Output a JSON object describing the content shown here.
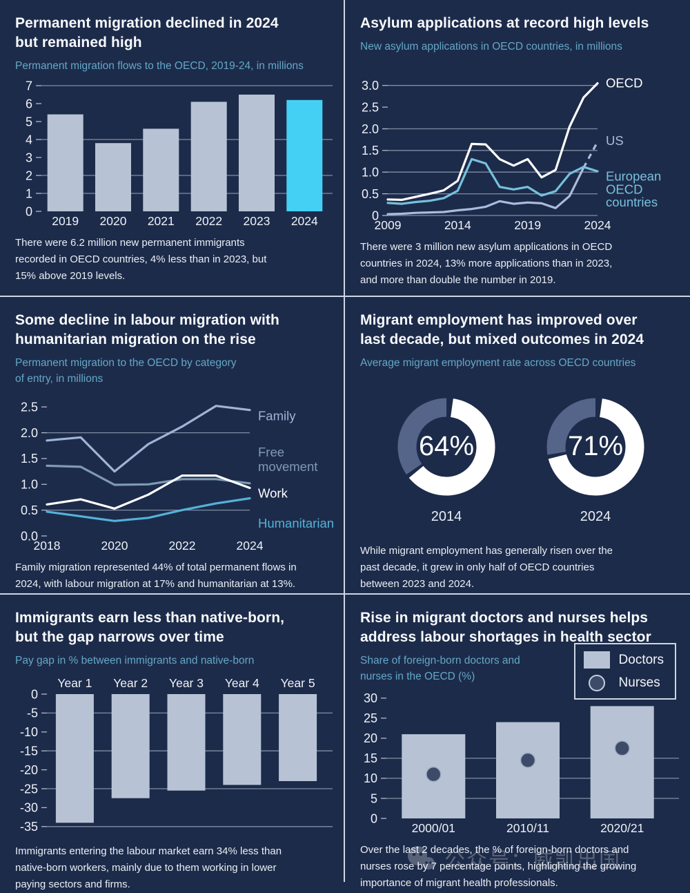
{
  "watermark": {
    "text": "公众号：威凯出国"
  },
  "colors": {
    "background": "#1d2b4a",
    "divider": "#cdd6e3",
    "title_text": "#f7f9fc",
    "subtitle_text": "#63a8c7",
    "caption_text": "#e9eef5",
    "bar_gray": "#b7c3d4",
    "highlight_cyan": "#44d0f4",
    "donut_ring_gray": "#55658a",
    "donut_fill_white": "#ffffff"
  },
  "panels": [
    {
      "id": "permanent-migration",
      "title": "Permanent migration declined in 2024\nbut remained high",
      "subtitle": "Permanent migration flows to the OECD, 2019-24, in millions",
      "caption": "There were 6.2 million new permanent immigrants\nrecorded in OECD countries, 4% less than in 2023, but\n15% above 2019 levels."
    },
    {
      "id": "asylum-applications",
      "title": "Asylum applications at record high levels",
      "subtitle": "New asylum applications in OECD countries, in millions",
      "caption": "There were 3 million new asylum applications in OECD\ncountries in 2024, 13% more applications than in 2023,\nand more than double the number in 2019."
    },
    {
      "id": "migration-by-category",
      "title": "Some decline in labour migration with\nhumanitarian migration on the rise",
      "subtitle": "Permanent migration to the OECD by category\nof entry, in millions",
      "caption": "Family migration represented 44% of total permanent flows in\n2024, with labour migration at 17% and humanitarian at 13%."
    },
    {
      "id": "migrant-employment",
      "title": "Migrant employment has improved over\nlast decade, but mixed outcomes in 2024",
      "subtitle": "Average migrant employment rate across OECD countries",
      "caption": "While migrant employment has generally risen over the\npast decade, it grew in only half of OECD countries\nbetween 2023 and 2024."
    },
    {
      "id": "pay-gap",
      "title": "Immigrants earn less than native-born,\nbut the gap narrows over time",
      "subtitle": "Pay gap in % between immigrants and native-born",
      "caption": "Immigrants entering the labour market earn 34% less than\nnative-born workers, mainly due to them working in lower\npaying sectors and firms."
    },
    {
      "id": "doctors-nurses",
      "title": "Rise in migrant doctors and nurses helps\naddress labour shortages in health sector",
      "subtitle": "Share of foreign-born doctors and\nnurses in the OECD (%)",
      "caption": "Over the last 2 decades, the % of foreign-born doctors and\nnurses rose by 7 percentage points, highlighting the growing\nimportance of migrant health professionals."
    }
  ],
  "chart_data": [
    {
      "panel": "permanent-migration",
      "type": "bar",
      "title": "Permanent migration flows to the OECD, 2019-24, in millions",
      "unit": "millions",
      "categories": [
        "2019",
        "2020",
        "2021",
        "2022",
        "2023",
        "2024"
      ],
      "values": [
        5.4,
        3.8,
        4.6,
        6.1,
        6.5,
        6.2
      ],
      "highlight_index": 5,
      "bar_color": "#b7c3d4",
      "highlight_color": "#44d0f4",
      "ylim": [
        0,
        7
      ],
      "yticks": [
        [
          0,
          "0"
        ],
        [
          1,
          "1"
        ],
        [
          2,
          "2"
        ],
        [
          3,
          "3"
        ],
        [
          4,
          "4"
        ],
        [
          5,
          "5"
        ],
        [
          6,
          "6"
        ],
        [
          7,
          "7"
        ]
      ],
      "gridlines": [
        1,
        2,
        4,
        7
      ],
      "labels_position": "bottom"
    },
    {
      "panel": "asylum-applications",
      "type": "line",
      "title": "New asylum applications in OECD countries, in millions",
      "unit": "millions",
      "x": [
        2009,
        2010,
        2011,
        2012,
        2013,
        2014,
        2015,
        2016,
        2017,
        2018,
        2019,
        2020,
        2021,
        2022,
        2023,
        2024
      ],
      "xticks": [
        [
          0,
          "2009"
        ],
        [
          5,
          "2014"
        ],
        [
          10,
          "2019"
        ],
        [
          15,
          "2024"
        ]
      ],
      "ylim": [
        0,
        3.25
      ],
      "yticks": [
        [
          0,
          "0"
        ],
        [
          0.5,
          "0.5"
        ],
        [
          1,
          "1.0"
        ],
        [
          1.5,
          "1.5"
        ],
        [
          2,
          "2.0"
        ],
        [
          2.5,
          "2.5"
        ],
        [
          3,
          "3.0"
        ]
      ],
      "gridlines": [
        0,
        0.5,
        1,
        1.5,
        2,
        3
      ],
      "series": [
        {
          "name": "US",
          "color": "#aabcdc",
          "dashed_final_segment": true,
          "values": [
            0.03,
            0.04,
            0.06,
            0.07,
            0.08,
            0.12,
            0.15,
            0.2,
            0.33,
            0.27,
            0.3,
            0.28,
            0.17,
            0.45,
            1.1,
            1.7
          ]
        },
        {
          "name": "European OECD countries",
          "color": "#77c1dd",
          "values": [
            0.29,
            0.27,
            0.31,
            0.34,
            0.4,
            0.57,
            1.3,
            1.2,
            0.66,
            0.6,
            0.66,
            0.46,
            0.56,
            0.96,
            1.12,
            1.02
          ]
        },
        {
          "name": "OECD",
          "color": "#ffffff",
          "values": [
            0.37,
            0.36,
            0.43,
            0.5,
            0.58,
            0.8,
            1.65,
            1.64,
            1.3,
            1.15,
            1.3,
            0.88,
            1.05,
            2.05,
            2.72,
            3.05
          ]
        }
      ],
      "right_labels": [
        {
          "text": "OECD",
          "v": 3.05,
          "color": "#ffffff"
        },
        {
          "text": "US",
          "v": 1.72,
          "color": "#aabcdc"
        },
        {
          "text": "European",
          "v": 0.9,
          "color": "#77c1dd"
        },
        {
          "text": "OECD",
          "v": 0.6,
          "color": "#77c1dd"
        },
        {
          "text": "countries",
          "v": 0.3,
          "color": "#77c1dd"
        }
      ]
    },
    {
      "panel": "migration-by-category",
      "type": "line",
      "title": "Permanent migration to the OECD by category of entry, in millions",
      "unit": "millions",
      "x": [
        2018,
        2019,
        2020,
        2021,
        2022,
        2023,
        2024
      ],
      "xticks": [
        [
          0,
          "2018"
        ],
        [
          2,
          "2020"
        ],
        [
          4,
          "2022"
        ],
        [
          6,
          "2024"
        ]
      ],
      "ylim": [
        0,
        2.65
      ],
      "yticks": [
        [
          0,
          "0.0"
        ],
        [
          0.5,
          "0.5"
        ],
        [
          1,
          "1.0"
        ],
        [
          1.5,
          "1.5"
        ],
        [
          2,
          "2.0"
        ],
        [
          2.5,
          "2.5"
        ]
      ],
      "gridlines": [
        0.5,
        2.0
      ],
      "series": [
        {
          "name": "Family",
          "color": "#a0b4d6",
          "values": [
            1.85,
            1.91,
            1.25,
            1.78,
            2.12,
            2.52,
            2.44
          ]
        },
        {
          "name": "Free movement",
          "color": "#7f9ab4",
          "values": [
            1.36,
            1.34,
            0.99,
            1.0,
            1.1,
            1.1,
            1.02
          ]
        },
        {
          "name": "Humanitarian",
          "color": "#54b2d8",
          "values": [
            0.47,
            0.38,
            0.29,
            0.35,
            0.5,
            0.63,
            0.73
          ]
        },
        {
          "name": "Work",
          "color": "#ffffff",
          "values": [
            0.61,
            0.71,
            0.53,
            0.8,
            1.17,
            1.17,
            0.93
          ]
        }
      ],
      "right_labels": [
        {
          "text": "Family",
          "v": 2.32,
          "color": "#a0b4d6"
        },
        {
          "text": "Free",
          "v": 1.62,
          "color": "#7f9ab4"
        },
        {
          "text": "movement",
          "v": 1.34,
          "color": "#7f9ab4"
        },
        {
          "text": "Work",
          "v": 0.82,
          "color": "#ffffff"
        },
        {
          "text": "Humanitarian",
          "v": 0.24,
          "color": "#54b2d8"
        }
      ]
    },
    {
      "panel": "migrant-employment",
      "type": "donut",
      "title": "Average migrant employment rate across OECD countries",
      "ring_color": "#55658a",
      "fill_color": "#ffffff",
      "donuts": [
        {
          "label": "2014",
          "value_pct": 64,
          "display": "64%"
        },
        {
          "label": "2024",
          "value_pct": 71,
          "display": "71%"
        }
      ]
    },
    {
      "panel": "pay-gap",
      "type": "bar",
      "title": "Pay gap in % between immigrants and native-born",
      "unit": "%",
      "categories": [
        "Year 1",
        "Year 2",
        "Year 3",
        "Year 4",
        "Year 5"
      ],
      "values": [
        -34,
        -27.5,
        -25.5,
        -24,
        -23
      ],
      "bar_color": "#b7c3d4",
      "ylim": [
        -36.5,
        0
      ],
      "yticks": [
        [
          0,
          "0"
        ],
        [
          -5,
          "-5"
        ],
        [
          -10,
          "-10"
        ],
        [
          -15,
          "-15"
        ],
        [
          -20,
          "-20"
        ],
        [
          -25,
          "-25"
        ],
        [
          -30,
          "-30"
        ],
        [
          -35,
          "-35"
        ]
      ],
      "gridlines": [
        -5,
        -15,
        -25,
        -35
      ],
      "labels_position": "top"
    },
    {
      "panel": "doctors-nurses",
      "type": "bar",
      "title": "Share of foreign-born doctors and nurses in the OECD (%)",
      "unit": "%",
      "categories": [
        "2000/01",
        "2010/11",
        "2020/21"
      ],
      "series": [
        {
          "name": "Doctors",
          "kind": "bar",
          "values": [
            21,
            24,
            28
          ]
        },
        {
          "name": "Nurses",
          "kind": "dot",
          "values": [
            11,
            14.5,
            17.5
          ]
        }
      ],
      "bar_color": "#b7c3d4",
      "dot_color": "#3e4b68",
      "dot_stroke": "#9fb0c8",
      "ylim": [
        0,
        31
      ],
      "yticks": [
        [
          0,
          "0"
        ],
        [
          5,
          "5"
        ],
        [
          10,
          "10"
        ],
        [
          15,
          "15"
        ],
        [
          20,
          "20"
        ],
        [
          25,
          "25"
        ],
        [
          30,
          "30"
        ]
      ],
      "gridlines": [
        5,
        10,
        15
      ],
      "labels_position": "bottom",
      "legend_position": "top-right"
    }
  ]
}
